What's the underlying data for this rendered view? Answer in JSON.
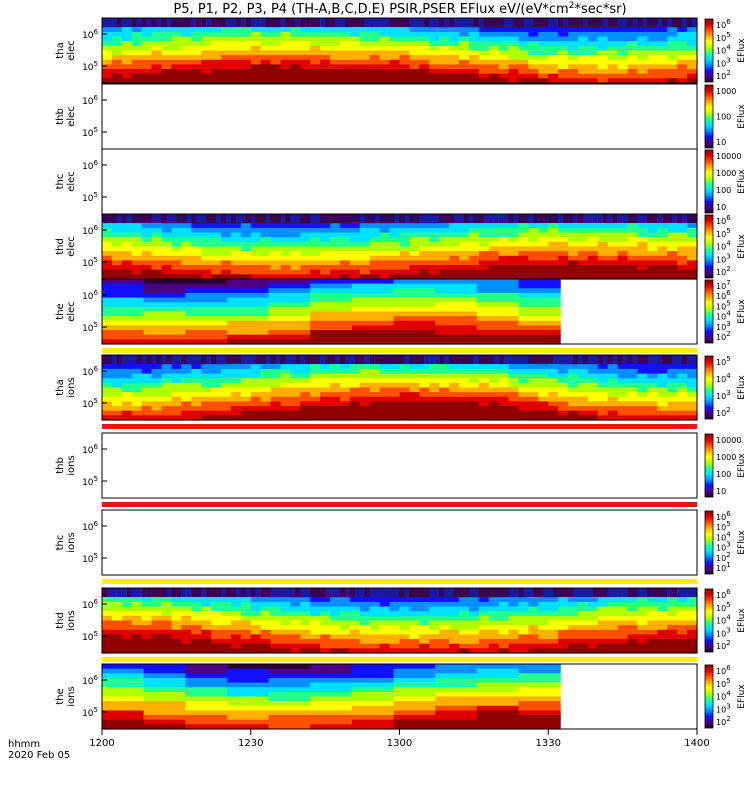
{
  "title": "P5, P1, P2, P3, P4 (TH-A,B,C,D,E) PSIR,PSER EFlux eV/(eV*cm",
  "title_sup": "2",
  "title_tail": "*sec*sr)",
  "colorbar_label": "EFlux",
  "time_axis": {
    "ticks": [
      "1200",
      "1230",
      "1300",
      "1330",
      "1400"
    ],
    "unit_label": "hhmm",
    "date_label": "2020 Feb 05"
  },
  "chart_data": {
    "type": "heatmap",
    "x_range": [
      "12:00",
      "14:00"
    ],
    "panels": [
      {
        "label": [
          "tha",
          "elec"
        ],
        "y_ticks": [
          "10^6",
          "10^5"
        ],
        "cb_ticks": [
          "10^6",
          "10^5",
          "10^4",
          "10^3",
          "10^2"
        ],
        "state": "full"
      },
      {
        "label": [
          "thb",
          "elec"
        ],
        "y_ticks": [
          "10^6",
          "10^5"
        ],
        "cb_ticks": [
          "1000",
          "100",
          "10"
        ],
        "state": "empty"
      },
      {
        "label": [
          "thc",
          "elec"
        ],
        "y_ticks": [
          "10^6",
          "10^5"
        ],
        "cb_ticks": [
          "10000",
          "1000",
          "100",
          "10"
        ],
        "state": "empty"
      },
      {
        "label": [
          "thd",
          "elec"
        ],
        "y_ticks": [
          "10^6",
          "10^5"
        ],
        "cb_ticks": [
          "10^6",
          "10^5",
          "10^4",
          "10^3",
          "10^2"
        ],
        "state": "full"
      },
      {
        "label": [
          "the",
          "elec"
        ],
        "y_ticks": [
          "10^6",
          "10^5"
        ],
        "cb_ticks": [
          "10^7",
          "10^6",
          "10^5",
          "10^4",
          "10^3",
          "10^2"
        ],
        "state": "partial",
        "data_end": "13:32"
      },
      {
        "label": [
          "tha",
          "ions"
        ],
        "y_ticks": [
          "10^6",
          "10^5"
        ],
        "cb_ticks": [
          "10^5",
          "10^4",
          "10^3",
          "10^2"
        ],
        "state": "full"
      },
      {
        "label": [
          "thb",
          "ions"
        ],
        "y_ticks": [
          "10^6",
          "10^5"
        ],
        "cb_ticks": [
          "10000",
          "1000",
          "100",
          "10"
        ],
        "state": "empty"
      },
      {
        "label": [
          "thc",
          "ions"
        ],
        "y_ticks": [
          "10^6",
          "10^5"
        ],
        "cb_ticks": [
          "10^6",
          "10^5",
          "10^4",
          "10^3",
          "10^2",
          "10^1"
        ],
        "state": "empty"
      },
      {
        "label": [
          "thd",
          "ions"
        ],
        "y_ticks": [
          "10^6",
          "10^5"
        ],
        "cb_ticks": [
          "10^6",
          "10^5",
          "10^4",
          "10^3",
          "10^2"
        ],
        "state": "full"
      },
      {
        "label": [
          "the",
          "ions"
        ],
        "y_ticks": [
          "10^6",
          "10^5"
        ],
        "cb_ticks": [
          "10^6",
          "10^5",
          "10^4",
          "10^3",
          "10^2"
        ],
        "state": "partial",
        "data_end": "13:32"
      }
    ],
    "status_bars": [
      {
        "after_panel": 4,
        "color": "#ffee00"
      },
      {
        "after_panel": 5,
        "color": "#ee1111"
      },
      {
        "after_panel": 6,
        "color": "#ee1111"
      },
      {
        "after_panel": 7,
        "color": "#ffee00"
      },
      {
        "after_panel": 8,
        "color": "#ffee00"
      }
    ],
    "colormap": [
      "#2a0030",
      "#4b0085",
      "#1010ff",
      "#0090ff",
      "#00e0ff",
      "#20ff90",
      "#b0ff00",
      "#ffff00",
      "#ffb000",
      "#ff5000",
      "#e00000",
      "#900000"
    ]
  }
}
